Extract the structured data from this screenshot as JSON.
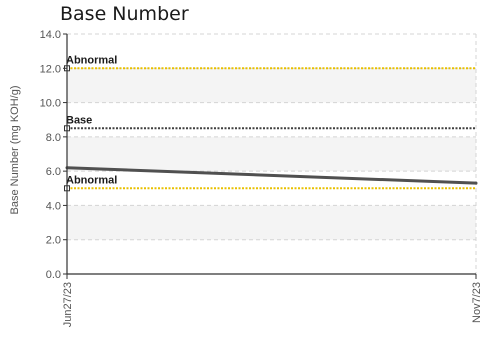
{
  "chart_data": {
    "type": "line",
    "title": "Base Number",
    "xlabel": "",
    "ylabel": "Base Number (mg KOH/g)",
    "x": [
      "Jun27/23",
      "Nov7/23"
    ],
    "xlim": [
      "Jun27/23",
      "Nov7/23"
    ],
    "ylim": [
      0,
      14
    ],
    "yticks": [
      "0.0",
      "2.0",
      "4.0",
      "6.0",
      "8.0",
      "10.0",
      "12.0",
      "14.0"
    ],
    "grid": true,
    "series": [
      {
        "values": [
          6.2,
          5.3
        ],
        "color": "#505050"
      }
    ],
    "reference_lines": [
      {
        "label": "Abnormal",
        "value": 12.0,
        "color": "#e8c000"
      },
      {
        "label": "Base",
        "value": 8.5,
        "color": "#404040"
      },
      {
        "label": "Abnormal",
        "value": 5.0,
        "color": "#e8c000"
      }
    ],
    "band_color": "#f4f4f4",
    "axis_color": "#333333",
    "grid_color": "#d4d4d4"
  }
}
